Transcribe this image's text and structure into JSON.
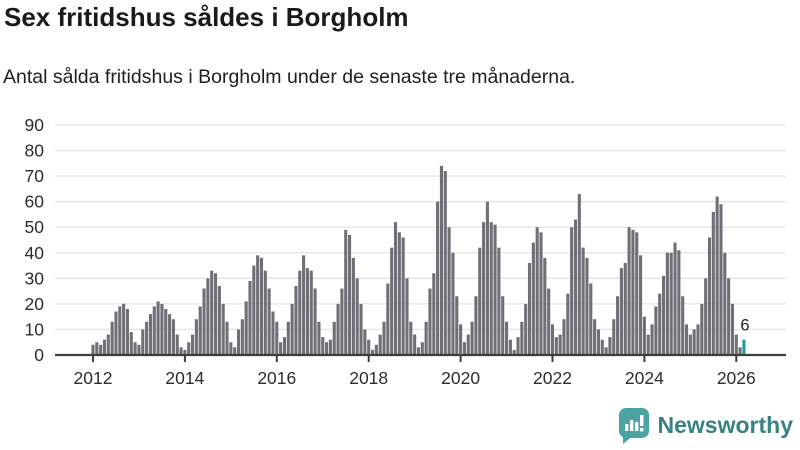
{
  "header": {
    "title": "Sex fritidshus såldes i Borgholm",
    "subtitle": "Antal sålda fritidshus i Borgholm under de senaste tre månaderna."
  },
  "chart_data": {
    "type": "bar",
    "title": "Sex fritidshus såldes i Borgholm",
    "subtitle": "Antal sålda fritidshus i Borgholm under de senaste tre månaderna.",
    "x_start": "2012-01",
    "x_interval": "month",
    "values": [
      4,
      5,
      4,
      6,
      8,
      13,
      17,
      19,
      20,
      18,
      9,
      5,
      4,
      10,
      13,
      16,
      19,
      21,
      20,
      18,
      16,
      14,
      8,
      3,
      2,
      5,
      8,
      14,
      19,
      26,
      30,
      33,
      32,
      27,
      20,
      13,
      5,
      3,
      10,
      14,
      21,
      29,
      35,
      39,
      38,
      33,
      26,
      17,
      13,
      5,
      7,
      13,
      20,
      27,
      33,
      39,
      34,
      33,
      26,
      13,
      7,
      5,
      6,
      13,
      20,
      26,
      49,
      47,
      38,
      30,
      20,
      10,
      6,
      2,
      4,
      8,
      13,
      28,
      42,
      52,
      48,
      46,
      30,
      13,
      8,
      3,
      5,
      13,
      26,
      32,
      60,
      74,
      72,
      50,
      40,
      23,
      12,
      5,
      8,
      13,
      23,
      42,
      52,
      60,
      52,
      51,
      42,
      23,
      13,
      6,
      2,
      7,
      13,
      20,
      36,
      44,
      50,
      48,
      38,
      26,
      12,
      7,
      8,
      14,
      24,
      50,
      53,
      63,
      42,
      38,
      28,
      14,
      10,
      6,
      3,
      7,
      14,
      23,
      34,
      36,
      50,
      49,
      48,
      39,
      15,
      8,
      12,
      19,
      24,
      31,
      40,
      40,
      44,
      41,
      23,
      12,
      8,
      10,
      12,
      20,
      30,
      46,
      56,
      62,
      59,
      40,
      30,
      20,
      8,
      3,
      6
    ],
    "highlight_last": true,
    "last_value_label": "6",
    "ylim": [
      0,
      90
    ],
    "yticks": [
      0,
      10,
      20,
      30,
      40,
      50,
      60,
      70,
      80,
      90
    ],
    "xticks": [
      "2012",
      "2014",
      "2016",
      "2018",
      "2020",
      "2022",
      "2024",
      "2026"
    ],
    "grid": "horizontal",
    "legend": "none",
    "colors": {
      "bar": "#6f6f76",
      "highlight": "#16a0a0",
      "grid": "#e3e3e3",
      "axis": "#3f3f3f",
      "tick_text": "#2d2d2d",
      "annotation_text": "#1f1f1f"
    }
  },
  "footer": {
    "brand": "Newsworthy",
    "logo_icon": "newsworthy-speech-bubble-barchart-icon",
    "logo_color": "#4ba4a1"
  }
}
